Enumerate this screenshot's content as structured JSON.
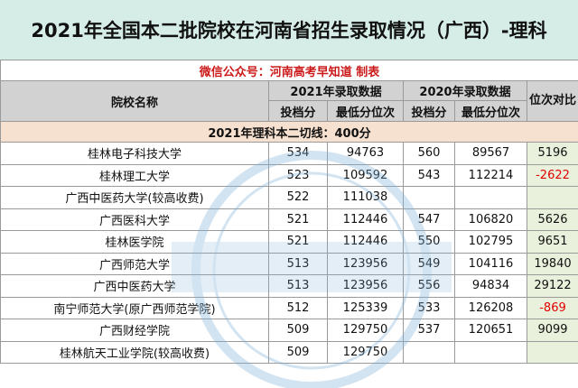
{
  "title": "2021年全国本二批院校在河南省招生录取情况（广西）-理科",
  "subtitle": "微信公众号：河南高考早知道 制表",
  "headers": {
    "school": "院校名称",
    "y2021": "2021年录取数据",
    "y2020": "2020年录取数据",
    "rank_diff": "位次对比",
    "score": "投档分",
    "min_rank": "最低分位次"
  },
  "cutoff_line": "2021年理科本二切线：400分",
  "rows": [
    {
      "name": "桂林电子科技大学",
      "s21": "534",
      "r21": "94763",
      "s20": "560",
      "r20": "89567",
      "diff": "5196"
    },
    {
      "name": "桂林理工大学",
      "s21": "523",
      "r21": "109592",
      "s20": "543",
      "r20": "112214",
      "diff": "-2622"
    },
    {
      "name": "广西中医药大学(较高收费)",
      "s21": "522",
      "r21": "111038",
      "s20": "",
      "r20": "",
      "diff": ""
    },
    {
      "name": "广西医科大学",
      "s21": "521",
      "r21": "112446",
      "s20": "547",
      "r20": "106820",
      "diff": "5626"
    },
    {
      "name": "桂林医学院",
      "s21": "521",
      "r21": "112446",
      "s20": "550",
      "r20": "102795",
      "diff": "9651"
    },
    {
      "name": "广西师范大学",
      "s21": "513",
      "r21": "123956",
      "s20": "549",
      "r20": "104116",
      "diff": "19840"
    },
    {
      "name": "广西中医药大学",
      "s21": "513",
      "r21": "123956",
      "s20": "556",
      "r20": "94834",
      "diff": "29122"
    },
    {
      "name": "南宁师范大学(原广西师范学院)",
      "s21": "512",
      "r21": "125339",
      "s20": "533",
      "r20": "126208",
      "diff": "-869"
    },
    {
      "name": "广西财经学院",
      "s21": "509",
      "r21": "129750",
      "s20": "537",
      "r20": "120651",
      "diff": "9099"
    },
    {
      "name": "桂林航天工业学院(较高收费)",
      "s21": "509",
      "r21": "129750",
      "s20": "",
      "r20": "",
      "diff": ""
    }
  ]
}
